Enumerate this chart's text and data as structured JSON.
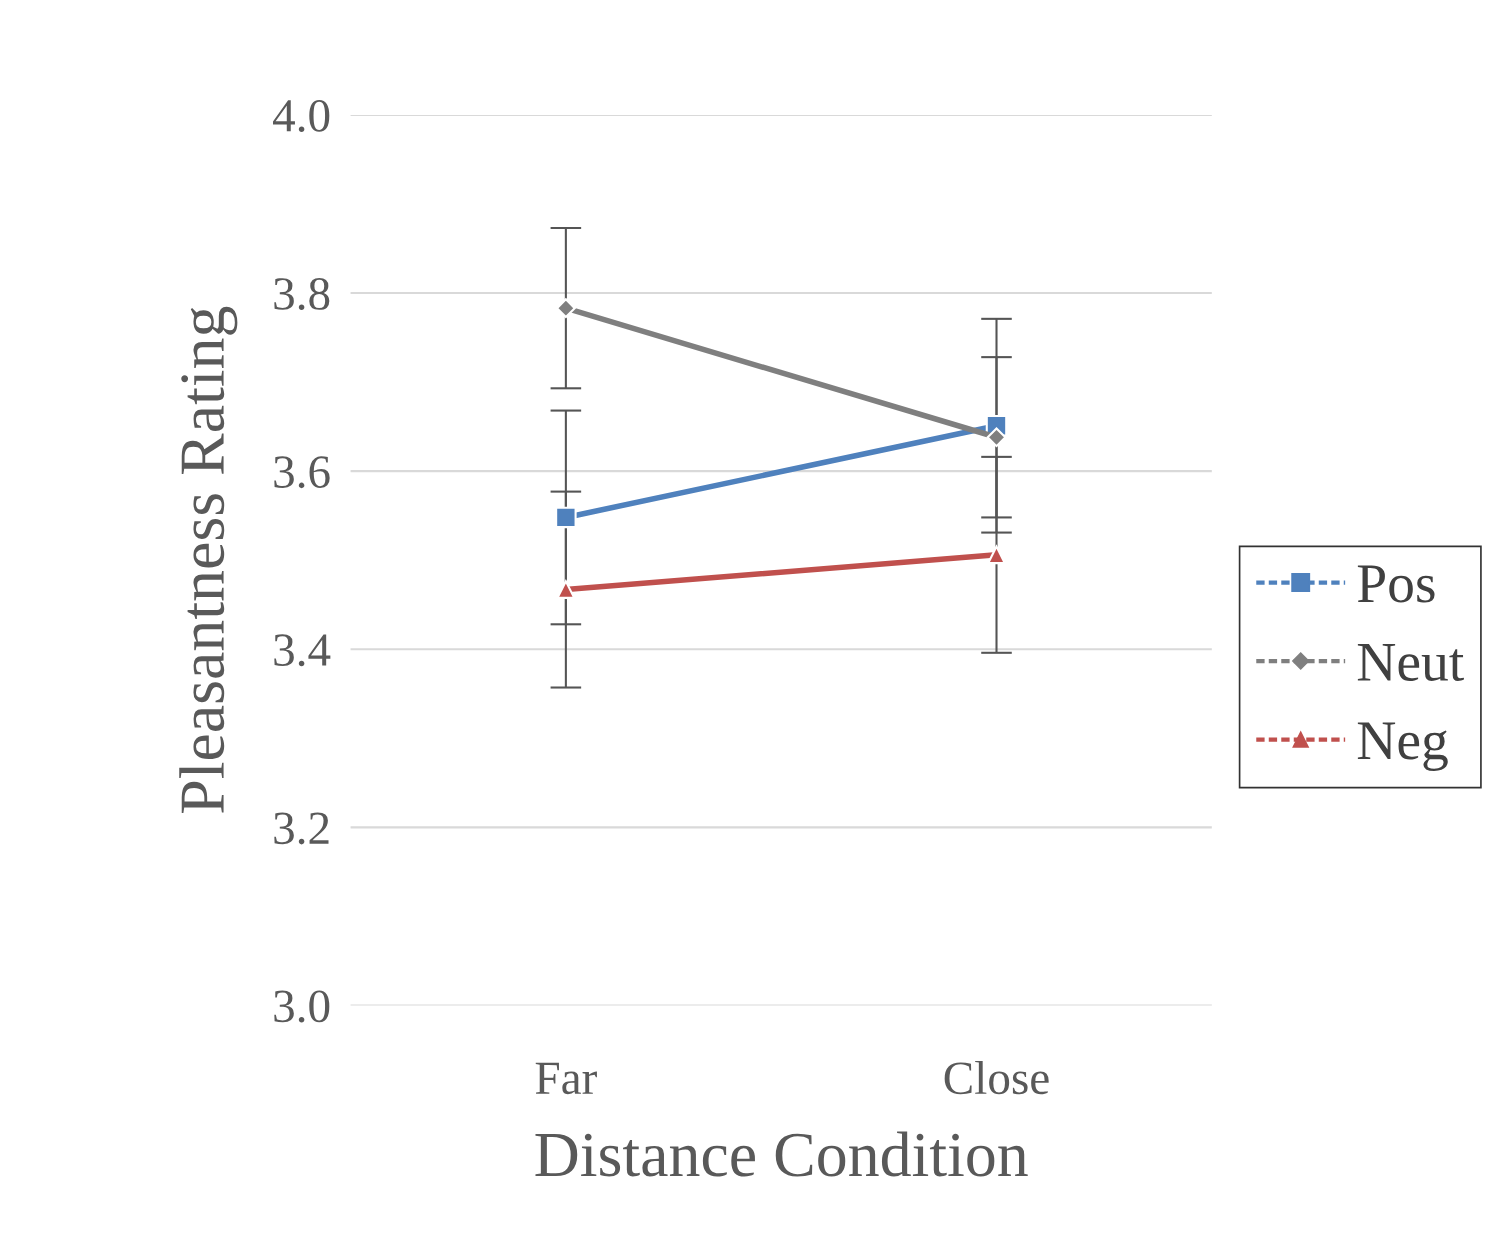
{
  "chart_data": {
    "type": "line",
    "xlabel": "Distance Condition",
    "ylabel": "Pleasantness Rating",
    "categories": [
      "Far",
      "Close"
    ],
    "series": [
      {
        "name": "Pos",
        "color": "#4f81bd",
        "marker": "square",
        "values": [
          3.548,
          3.651
        ],
        "errors": [
          0.12,
          0.12
        ]
      },
      {
        "name": "Neut",
        "color": "#7f7f7f",
        "marker": "diamond",
        "values": [
          3.783,
          3.638
        ],
        "errors": [
          0.09,
          0.09
        ]
      },
      {
        "name": "Neg",
        "color": "#c0504d",
        "marker": "triangle",
        "values": [
          3.467,
          3.506
        ],
        "errors": [
          0.11,
          0.11
        ]
      }
    ],
    "ylim": [
      3.0,
      4.0
    ],
    "yticks": [
      {
        "value": 3.0,
        "label": "3.0"
      },
      {
        "value": 3.2,
        "label": "3.2"
      },
      {
        "value": 3.4,
        "label": "3.4"
      },
      {
        "value": 3.6,
        "label": "3.6"
      },
      {
        "value": 3.8,
        "label": "3.8"
      },
      {
        "value": 4.0,
        "label": "4.0"
      }
    ],
    "grid": "y",
    "legend": "right"
  }
}
